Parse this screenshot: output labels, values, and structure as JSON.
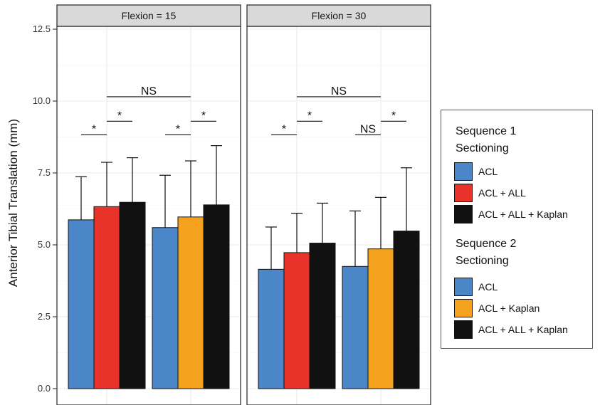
{
  "chart_data": {
    "type": "bar",
    "ylabel": "Anterior Tibial Translation (mm)",
    "ylim": [
      0,
      12.5
    ],
    "yticks": [
      "0.0",
      "2.5",
      "5.0",
      "7.5",
      "10.0",
      "12.5"
    ],
    "grid": true,
    "legend_position": "right",
    "panels": [
      {
        "title": "Flexion = 15",
        "groups": [
          {
            "sequence": "Sequence 1",
            "bars": [
              {
                "label": "ACL",
                "value": 5.87,
                "error_upper": 7.37,
                "color": "#4a86c8"
              },
              {
                "label": "ACL + ALL",
                "value": 6.33,
                "error_upper": 7.87,
                "color": "#e8332a"
              },
              {
                "label": "ACL + ALL + Kaplan",
                "value": 6.48,
                "error_upper": 8.03,
                "color": "#111111"
              }
            ]
          },
          {
            "sequence": "Sequence 2",
            "bars": [
              {
                "label": "ACL",
                "value": 5.6,
                "error_upper": 7.42,
                "color": "#4a86c8"
              },
              {
                "label": "ACL + Kaplan",
                "value": 5.97,
                "error_upper": 7.92,
                "color": "#f4a21d"
              },
              {
                "label": "ACL + ALL + Kaplan",
                "value": 6.39,
                "error_upper": 8.45,
                "color": "#111111"
              }
            ]
          }
        ],
        "annotations": [
          {
            "text": "*",
            "group": 0,
            "from": 0,
            "to": 1,
            "y": 8.83
          },
          {
            "text": "*",
            "group": 0,
            "from": 1,
            "to": 2,
            "y": 9.3
          },
          {
            "text": "*",
            "group": 1,
            "from": 0,
            "to": 1,
            "y": 8.83
          },
          {
            "text": "*",
            "group": 1,
            "from": 1,
            "to": 2,
            "y": 9.3
          },
          {
            "text": "NS",
            "span": "groups",
            "y": 10.15
          }
        ]
      },
      {
        "title": "Flexion = 30",
        "groups": [
          {
            "sequence": "Sequence 1",
            "bars": [
              {
                "label": "ACL",
                "value": 4.15,
                "error_upper": 5.62,
                "color": "#4a86c8"
              },
              {
                "label": "ACL + ALL",
                "value": 4.73,
                "error_upper": 6.1,
                "color": "#e8332a"
              },
              {
                "label": "ACL + ALL + Kaplan",
                "value": 5.06,
                "error_upper": 6.45,
                "color": "#111111"
              }
            ]
          },
          {
            "sequence": "Sequence 2",
            "bars": [
              {
                "label": "ACL",
                "value": 4.25,
                "error_upper": 6.18,
                "color": "#4a86c8"
              },
              {
                "label": "ACL + Kaplan",
                "value": 4.86,
                "error_upper": 6.65,
                "color": "#f4a21d"
              },
              {
                "label": "ACL + ALL + Kaplan",
                "value": 5.48,
                "error_upper": 7.68,
                "color": "#111111"
              }
            ]
          }
        ],
        "annotations": [
          {
            "text": "*",
            "group": 0,
            "from": 0,
            "to": 1,
            "y": 8.83
          },
          {
            "text": "*",
            "group": 0,
            "from": 1,
            "to": 2,
            "y": 9.3
          },
          {
            "text": "NS",
            "group": 1,
            "from": 0,
            "to": 1,
            "y": 8.83
          },
          {
            "text": "*",
            "group": 1,
            "from": 1,
            "to": 2,
            "y": 9.3
          },
          {
            "text": "NS",
            "span": "groups",
            "y": 10.15
          }
        ]
      }
    ]
  },
  "legend": {
    "sections": [
      {
        "title_line1": "Sequence 1",
        "title_line2": "Sectioning",
        "items": [
          {
            "label": "ACL",
            "color": "#4a86c8"
          },
          {
            "label": "ACL + ALL",
            "color": "#e8332a"
          },
          {
            "label": "ACL + ALL + Kaplan",
            "color": "#111111"
          }
        ]
      },
      {
        "title_line1": "Sequence 2",
        "title_line2": "Sectioning",
        "items": [
          {
            "label": "ACL",
            "color": "#4a86c8"
          },
          {
            "label": "ACL + Kaplan",
            "color": "#f4a21d"
          },
          {
            "label": "ACL + ALL + Kaplan",
            "color": "#111111"
          }
        ]
      }
    ]
  },
  "colors": {
    "strip_fill": "#d9d9d9",
    "grid_major": "#ebebeb",
    "grid_minor": "#f5f5f5",
    "axis": "#333333"
  }
}
